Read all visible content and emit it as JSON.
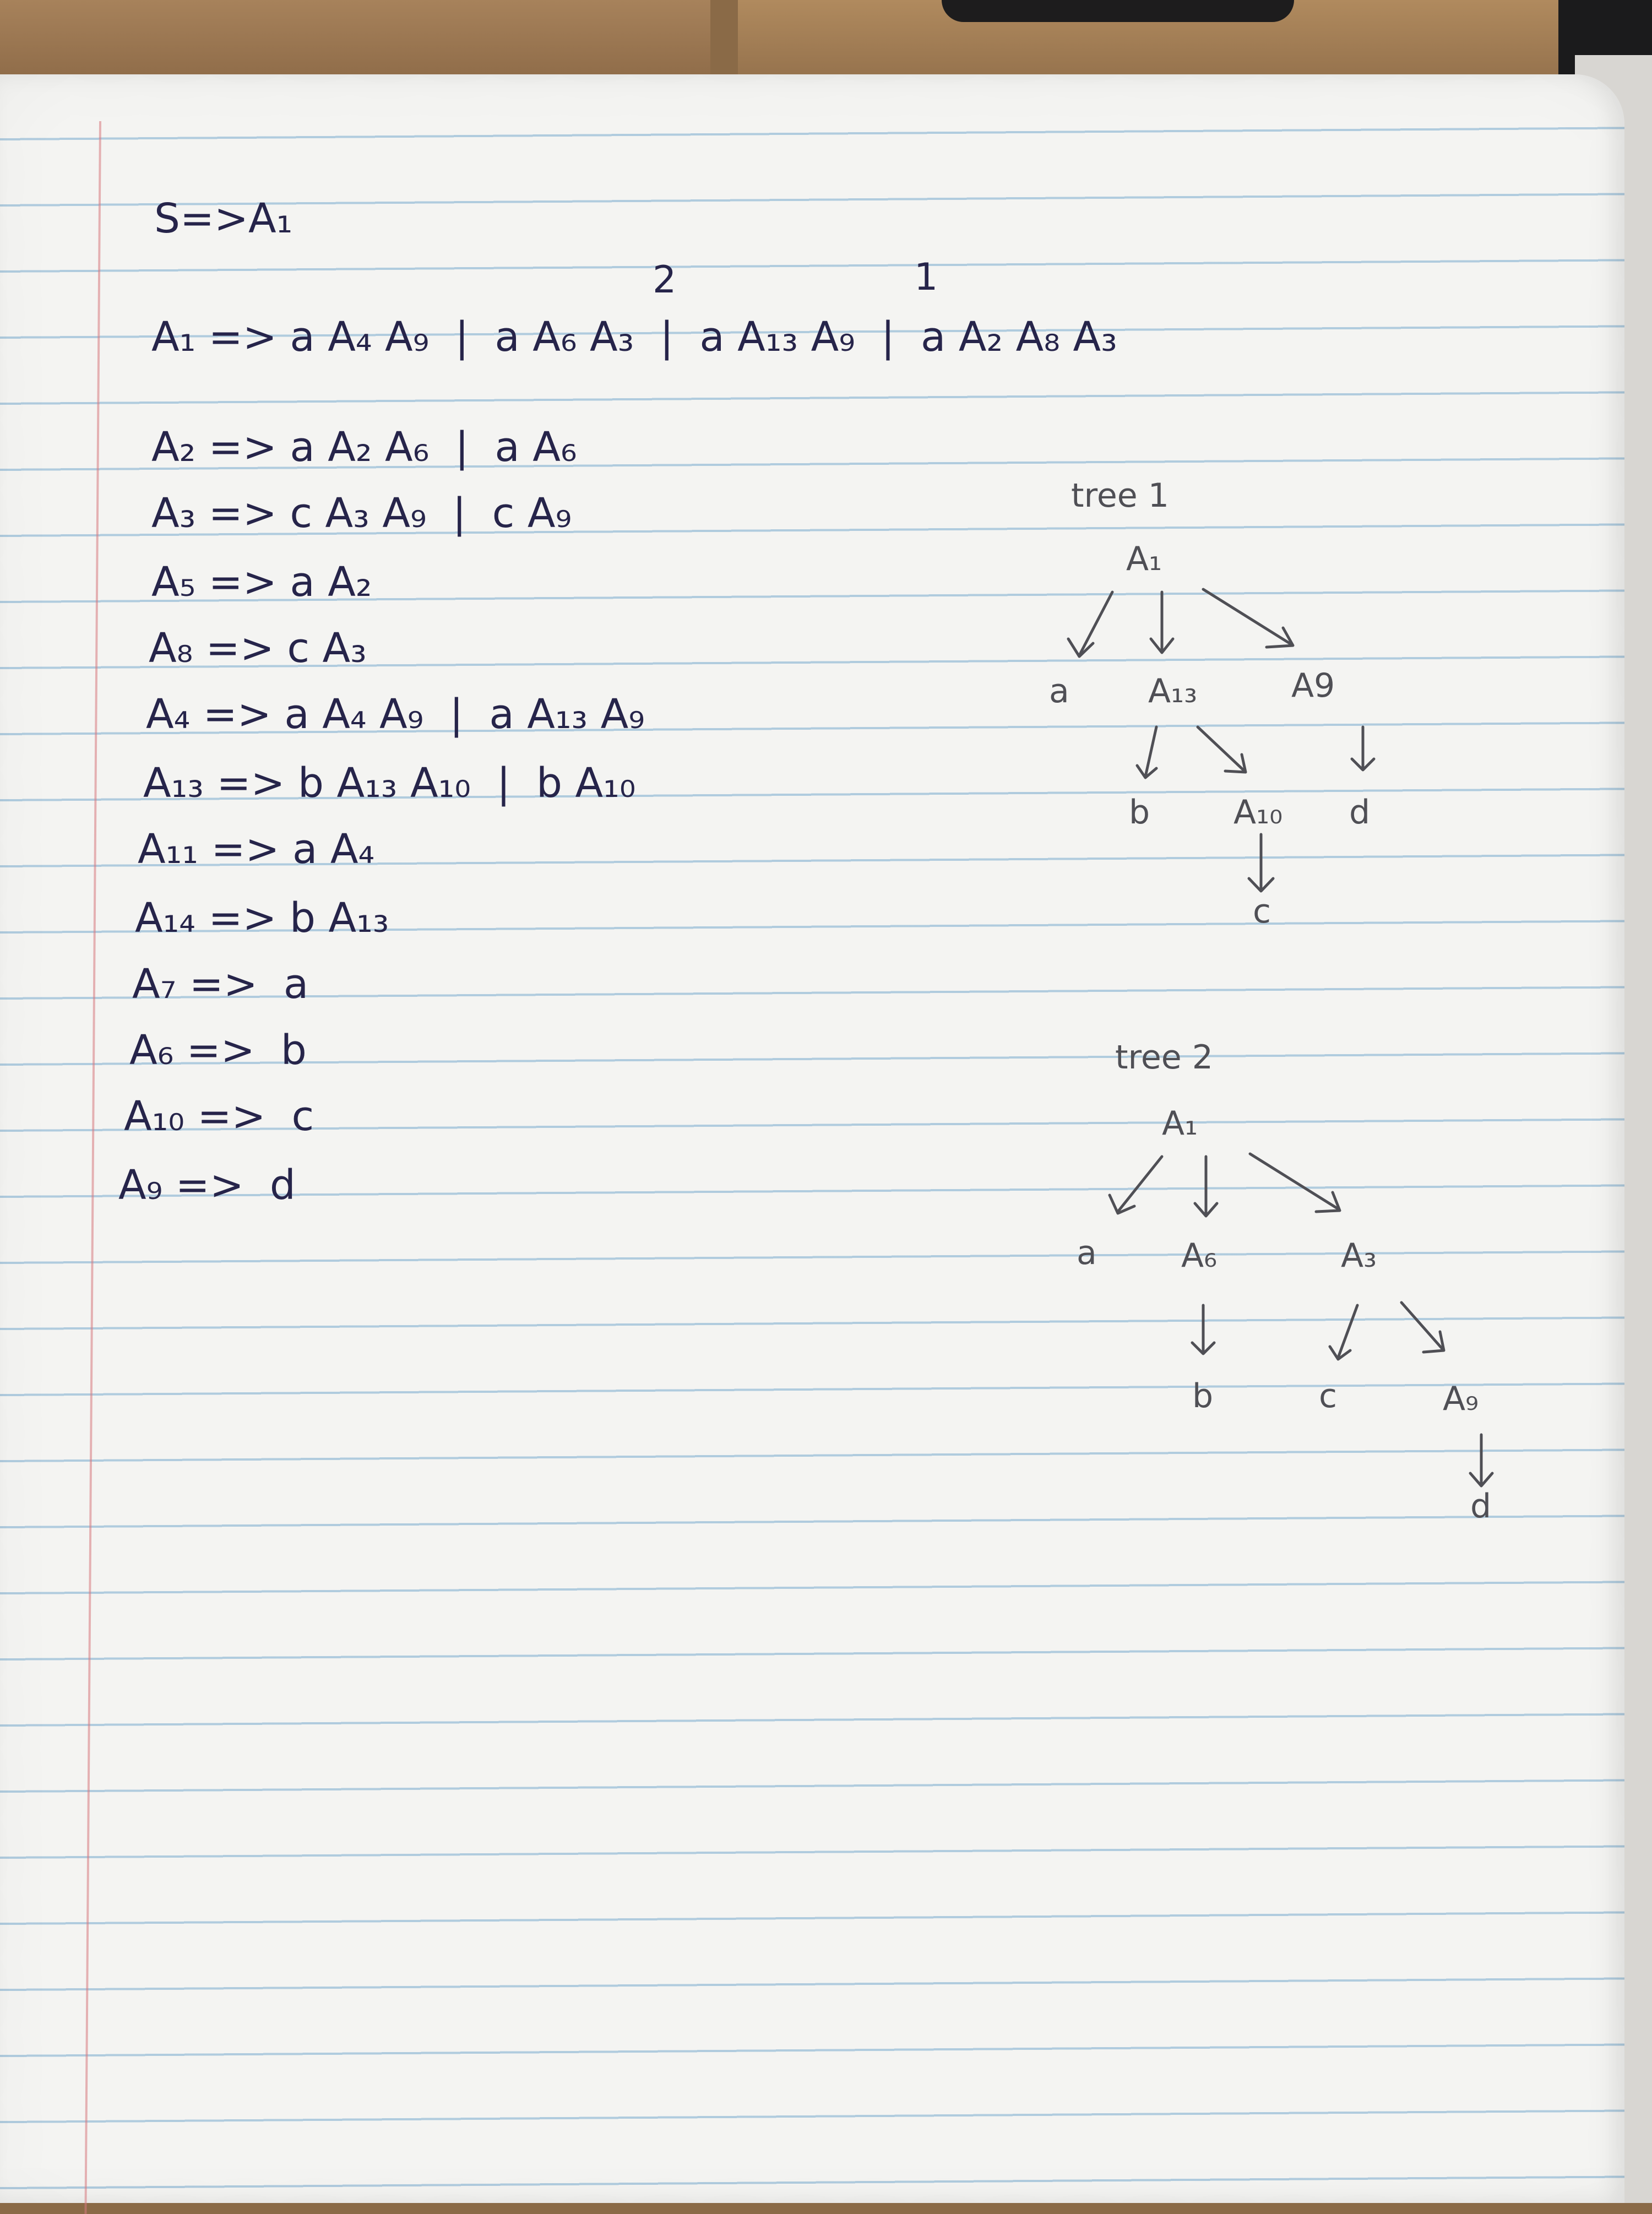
{
  "start_rule": "S=>A₁",
  "rule_labels": [
    "2",
    "1"
  ],
  "productions": [
    "A₁ => a A₄ A₉  |  a A₆ A₃  |  a A₁₃ A₉  |  a A₂ A₈ A₃",
    "A₂ => a A₂ A₆  |  a A₆",
    "A₃ => c A₃ A₉  |  c A₉",
    "A₅ => a A₂",
    "A₈ => c A₃",
    "A₄ => a A₄ A₉  |  a A₁₃ A₉",
    "A₁₃ => b A₁₃ A₁₀  |  b A₁₀",
    "A₁₁ => a A₄",
    "A₁₄ => b A₁₃",
    "A₇ =>  a",
    "A₆ =>  b",
    "A₁₀ =>  c",
    "A₉ =>  d"
  ],
  "tree1": {
    "title": "tree 1",
    "nodes": {
      "root": "A₁",
      "left": "a",
      "mid": "A₁₃",
      "right": "A9",
      "mid_left": "b",
      "mid_right": "A₁₀",
      "right_child": "d",
      "leaf": "c"
    }
  },
  "tree2": {
    "title": "tree 2",
    "nodes": {
      "root": "A₁",
      "left": "a",
      "mid": "A₆",
      "right": "A₃",
      "mid_child": "b",
      "right_left": "c",
      "right_right": "A₉",
      "leaf": "d"
    }
  },
  "colors": {
    "ink": "#26244a",
    "pencil": "#4f4f55",
    "rule_lines": "#78aacd",
    "margin": "#d7787d",
    "paper": "#f4f4f2"
  }
}
